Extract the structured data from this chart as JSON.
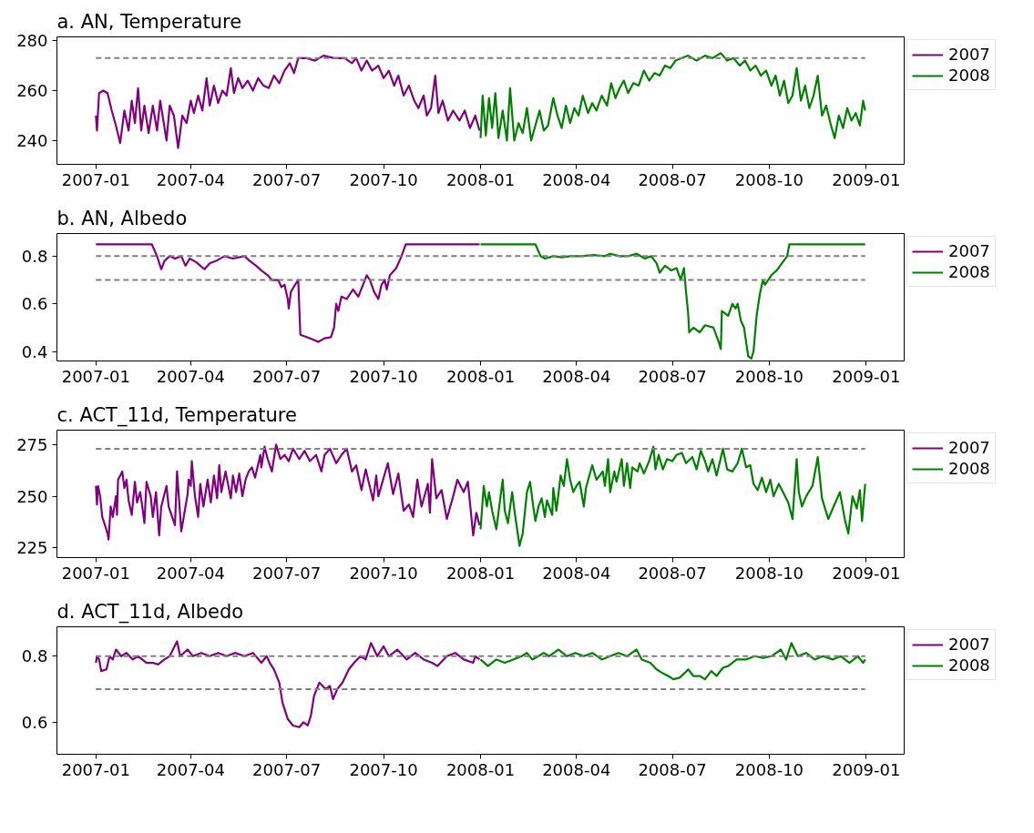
{
  "chart_data": [
    {
      "type": "line",
      "title": "a. AN, Temperature",
      "xlim": [
        "2006-11-25",
        "2009-02-06"
      ],
      "xticks": [
        "2007-01",
        "2007-04",
        "2007-07",
        "2007-10",
        "2008-01",
        "2008-04",
        "2008-07",
        "2008-10",
        "2009-01"
      ],
      "ylim": [
        230.5,
        281.5
      ],
      "yticks": [
        240,
        260,
        280
      ],
      "grid": false,
      "legend": "top right",
      "ref_lines": [
        {
          "axis": "y",
          "value": 273,
          "color": "#808080",
          "line_style": "dashed"
        }
      ],
      "series": [
        {
          "name": "2007",
          "color": "#800080",
          "x": [
            "2007-01-01",
            "2007-01-02",
            "2007-01-04",
            "2007-01-08",
            "2007-01-12",
            "2007-01-16",
            "2007-01-20",
            "2007-01-24",
            "2007-01-28",
            "2007-02-01",
            "2007-02-04",
            "2007-02-07",
            "2007-02-10",
            "2007-02-13",
            "2007-02-16",
            "2007-02-20",
            "2007-02-24",
            "2007-02-28",
            "2007-03-03",
            "2007-03-06",
            "2007-03-09",
            "2007-03-12",
            "2007-03-16",
            "2007-03-20",
            "2007-03-24",
            "2007-03-28",
            "2007-04-01",
            "2007-04-04",
            "2007-04-08",
            "2007-04-12",
            "2007-04-16",
            "2007-04-19",
            "2007-04-23",
            "2007-04-27",
            "2007-05-01",
            "2007-05-05",
            "2007-05-09",
            "2007-05-12",
            "2007-05-16",
            "2007-05-20",
            "2007-05-25",
            "2007-05-30",
            "2007-06-04",
            "2007-06-09",
            "2007-06-14",
            "2007-06-19",
            "2007-06-24",
            "2007-06-29",
            "2007-07-04",
            "2007-07-08",
            "2007-07-12",
            "2007-07-20",
            "2007-07-28",
            "2007-08-05",
            "2007-08-15",
            "2007-08-25",
            "2007-09-01",
            "2007-09-05",
            "2007-09-10",
            "2007-09-15",
            "2007-09-20",
            "2007-09-26",
            "2007-10-01",
            "2007-10-06",
            "2007-10-11",
            "2007-10-15",
            "2007-10-20",
            "2007-10-25",
            "2007-10-30",
            "2007-11-03",
            "2007-11-08",
            "2007-11-11",
            "2007-11-15",
            "2007-11-19",
            "2007-11-22",
            "2007-11-26",
            "2007-12-01",
            "2007-12-06",
            "2007-12-12",
            "2007-12-17",
            "2007-12-22",
            "2007-12-27",
            "2007-12-31"
          ],
          "values": [
            250,
            244,
            259,
            260,
            259,
            252,
            246,
            239,
            252,
            244,
            256,
            247,
            261,
            244,
            254,
            243,
            254,
            244,
            256,
            248,
            240,
            254,
            250,
            237,
            250,
            247,
            256,
            251,
            258,
            252,
            265,
            254,
            262,
            255,
            260,
            258,
            269,
            259,
            265,
            261,
            264,
            260,
            265,
            262,
            261,
            266,
            263,
            268,
            271,
            267,
            273,
            273,
            272,
            274,
            273,
            273,
            271,
            273,
            268,
            272,
            268,
            270,
            265,
            268,
            262,
            266,
            258,
            262,
            256,
            253,
            258,
            250,
            253,
            266,
            251,
            256,
            248,
            252,
            248,
            252,
            245,
            250,
            244
          ]
        },
        {
          "name": "2008",
          "color": "#008000",
          "x": [
            "2008-01-01",
            "2008-01-03",
            "2008-01-06",
            "2008-01-09",
            "2008-01-12",
            "2008-01-15",
            "2008-01-18",
            "2008-01-22",
            "2008-01-26",
            "2008-01-29",
            "2008-02-02",
            "2008-02-06",
            "2008-02-10",
            "2008-02-14",
            "2008-02-18",
            "2008-02-22",
            "2008-02-26",
            "2008-03-01",
            "2008-03-05",
            "2008-03-10",
            "2008-03-14",
            "2008-03-18",
            "2008-03-22",
            "2008-03-26",
            "2008-03-30",
            "2008-04-03",
            "2008-04-07",
            "2008-04-12",
            "2008-04-16",
            "2008-04-20",
            "2008-04-25",
            "2008-04-30",
            "2008-05-04",
            "2008-05-08",
            "2008-05-12",
            "2008-05-16",
            "2008-05-20",
            "2008-05-25",
            "2008-05-30",
            "2008-06-04",
            "2008-06-09",
            "2008-06-14",
            "2008-06-19",
            "2008-06-24",
            "2008-06-29",
            "2008-07-04",
            "2008-07-10",
            "2008-07-16",
            "2008-07-24",
            "2008-08-01",
            "2008-08-08",
            "2008-08-16",
            "2008-08-22",
            "2008-08-28",
            "2008-09-03",
            "2008-09-08",
            "2008-09-13",
            "2008-09-18",
            "2008-09-23",
            "2008-09-28",
            "2008-10-03",
            "2008-10-07",
            "2008-10-11",
            "2008-10-15",
            "2008-10-19",
            "2008-10-23",
            "2008-10-27",
            "2008-10-31",
            "2008-11-04",
            "2008-11-08",
            "2008-11-12",
            "2008-11-16",
            "2008-11-20",
            "2008-11-24",
            "2008-11-28",
            "2008-12-02",
            "2008-12-06",
            "2008-12-10",
            "2008-12-14",
            "2008-12-18",
            "2008-12-22",
            "2008-12-26",
            "2008-12-29",
            "2008-12-31"
          ],
          "values": [
            241,
            258,
            242,
            257,
            245,
            259,
            241,
            252,
            240,
            261,
            240,
            247,
            243,
            253,
            240,
            246,
            252,
            244,
            246,
            257,
            250,
            245,
            254,
            247,
            253,
            250,
            258,
            251,
            255,
            252,
            258,
            254,
            263,
            257,
            261,
            264,
            259,
            263,
            262,
            268,
            264,
            267,
            266,
            270,
            269,
            272,
            273,
            274,
            272,
            274,
            273,
            275,
            272,
            273,
            270,
            272,
            268,
            270,
            266,
            268,
            262,
            266,
            258,
            264,
            255,
            258,
            269,
            256,
            262,
            253,
            258,
            266,
            250,
            254,
            247,
            241,
            250,
            245,
            253,
            248,
            251,
            246,
            256,
            252
          ]
        }
      ]
    },
    {
      "type": "line",
      "title": "b. AN, Albedo",
      "xlim": [
        "2006-11-25",
        "2009-02-06"
      ],
      "xticks": [
        "2007-01",
        "2007-04",
        "2007-07",
        "2007-10",
        "2008-01",
        "2008-04",
        "2008-07",
        "2008-10",
        "2009-01"
      ],
      "ylim": [
        0.36,
        0.895
      ],
      "yticks": [
        0.4,
        0.6,
        0.8
      ],
      "grid": false,
      "legend": "top right",
      "ref_lines": [
        {
          "axis": "y",
          "value": 0.8,
          "color": "#808080",
          "line_style": "dashed"
        },
        {
          "axis": "y",
          "value": 0.7,
          "color": "#808080",
          "line_style": "dashed"
        }
      ],
      "series": [
        {
          "name": "2007",
          "color": "#800080",
          "x": [
            "2007-01-01",
            "2007-02-23",
            "2007-02-28",
            "2007-03-04",
            "2007-03-07",
            "2007-03-12",
            "2007-03-17",
            "2007-03-23",
            "2007-03-27",
            "2007-03-31",
            "2007-04-06",
            "2007-04-14",
            "2007-04-19",
            "2007-04-25",
            "2007-05-03",
            "2007-05-11",
            "2007-05-22",
            "2007-05-27",
            "2007-06-02",
            "2007-06-07",
            "2007-06-13",
            "2007-06-17",
            "2007-06-23",
            "2007-06-26",
            "2007-06-29",
            "2007-07-02",
            "2007-07-03",
            "2007-07-05",
            "2007-07-09",
            "2007-07-12",
            "2007-07-14",
            "2007-07-20",
            "2007-07-26",
            "2007-07-31",
            "2007-08-06",
            "2007-08-12",
            "2007-08-15",
            "2007-08-17",
            "2007-08-19",
            "2007-08-22",
            "2007-08-27",
            "2007-09-02",
            "2007-09-07",
            "2007-09-15",
            "2007-09-18",
            "2007-09-22",
            "2007-09-26",
            "2007-09-29",
            "2007-10-02",
            "2007-10-04",
            "2007-10-07",
            "2007-10-13",
            "2007-10-18",
            "2007-10-22",
            "2007-12-31"
          ],
          "values": [
            0.85,
            0.85,
            0.8,
            0.745,
            0.78,
            0.8,
            0.79,
            0.8,
            0.76,
            0.79,
            0.775,
            0.745,
            0.77,
            0.78,
            0.8,
            0.79,
            0.8,
            0.78,
            0.76,
            0.74,
            0.72,
            0.7,
            0.7,
            0.67,
            0.68,
            0.62,
            0.58,
            0.65,
            0.68,
            0.7,
            0.47,
            0.46,
            0.45,
            0.44,
            0.455,
            0.46,
            0.5,
            0.6,
            0.57,
            0.63,
            0.62,
            0.66,
            0.63,
            0.72,
            0.7,
            0.65,
            0.62,
            0.68,
            0.7,
            0.66,
            0.72,
            0.75,
            0.8,
            0.85,
            0.85
          ]
        },
        {
          "name": "2008",
          "color": "#008000",
          "x": [
            "2008-01-01",
            "2008-02-22",
            "2008-02-27",
            "2008-03-02",
            "2008-03-10",
            "2008-03-18",
            "2008-03-26",
            "2008-04-06",
            "2008-04-17",
            "2008-04-28",
            "2008-05-03",
            "2008-05-12",
            "2008-05-20",
            "2008-05-28",
            "2008-06-05",
            "2008-06-11",
            "2008-06-16",
            "2008-06-19",
            "2008-06-24",
            "2008-06-30",
            "2008-07-05",
            "2008-07-09",
            "2008-07-12",
            "2008-07-14",
            "2008-07-16",
            "2008-07-17",
            "2008-07-21",
            "2008-07-27",
            "2008-08-01",
            "2008-08-09",
            "2008-08-14",
            "2008-08-16",
            "2008-08-17",
            "2008-08-23",
            "2008-08-27",
            "2008-08-30",
            "2008-09-01",
            "2008-09-04",
            "2008-09-07",
            "2008-09-09",
            "2008-09-11",
            "2008-09-14",
            "2008-09-16",
            "2008-09-19",
            "2008-09-22",
            "2008-09-25",
            "2008-09-27",
            "2008-10-03",
            "2008-10-08",
            "2008-10-13",
            "2008-10-18",
            "2008-10-20",
            "2008-12-31"
          ],
          "values": [
            0.85,
            0.85,
            0.8,
            0.79,
            0.8,
            0.795,
            0.8,
            0.8,
            0.805,
            0.8,
            0.81,
            0.8,
            0.8,
            0.81,
            0.79,
            0.8,
            0.77,
            0.73,
            0.76,
            0.74,
            0.75,
            0.7,
            0.75,
            0.65,
            0.56,
            0.48,
            0.5,
            0.48,
            0.51,
            0.5,
            0.44,
            0.41,
            0.57,
            0.55,
            0.6,
            0.58,
            0.6,
            0.53,
            0.5,
            0.44,
            0.38,
            0.37,
            0.4,
            0.55,
            0.64,
            0.7,
            0.68,
            0.72,
            0.74,
            0.77,
            0.8,
            0.85,
            0.85
          ]
        }
      ]
    },
    {
      "type": "line",
      "title": "c. ACT_11d, Temperature",
      "xlim": [
        "2006-11-25",
        "2009-02-06"
      ],
      "xticks": [
        "2007-01",
        "2007-04",
        "2007-07",
        "2007-10",
        "2008-01",
        "2008-04",
        "2008-07",
        "2008-10",
        "2009-01"
      ],
      "ylim": [
        220.3,
        282
      ],
      "yticks": [
        225,
        250,
        275
      ],
      "grid": false,
      "legend": "top right",
      "ref_lines": [
        {
          "axis": "y",
          "value": 273,
          "color": "#808080",
          "line_style": "dashed"
        }
      ],
      "series": [
        {
          "name": "2007",
          "color": "#800080",
          "x": [
            "2007-01-01",
            "2007-01-02",
            "2007-01-03",
            "2007-01-05",
            "2007-01-07",
            "2007-01-09",
            "2007-01-12",
            "2007-01-13",
            "2007-01-15",
            "2007-01-17",
            "2007-01-20",
            "2007-01-21",
            "2007-01-22",
            "2007-01-26",
            "2007-01-28",
            "2007-01-30",
            "2007-02-01",
            "2007-02-04",
            "2007-02-07",
            "2007-02-09",
            "2007-02-12",
            "2007-02-14",
            "2007-02-16",
            "2007-02-18",
            "2007-02-22",
            "2007-02-24",
            "2007-02-27",
            "2007-03-02",
            "2007-03-04",
            "2007-03-09",
            "2007-03-11",
            "2007-03-17",
            "2007-03-19",
            "2007-03-23",
            "2007-03-26",
            "2007-03-29",
            "2007-03-30",
            "2007-04-01",
            "2007-04-02",
            "2007-04-05",
            "2007-04-08",
            "2007-04-10",
            "2007-04-13",
            "2007-04-17",
            "2007-04-20",
            "2007-04-23",
            "2007-04-26",
            "2007-04-28",
            "2007-04-30",
            "2007-05-04",
            "2007-05-09",
            "2007-05-11",
            "2007-05-14",
            "2007-05-17",
            "2007-05-20",
            "2007-05-23",
            "2007-05-26",
            "2007-05-29",
            "2007-06-01",
            "2007-06-06",
            "2007-06-07",
            "2007-06-10",
            "2007-06-13",
            "2007-06-17",
            "2007-06-21",
            "2007-06-25",
            "2007-06-29",
            "2007-07-03",
            "2007-07-07",
            "2007-07-13",
            "2007-07-18",
            "2007-07-23",
            "2007-07-29",
            "2007-08-03",
            "2007-08-06",
            "2007-08-11",
            "2007-08-17",
            "2007-08-22",
            "2007-08-27",
            "2007-09-01",
            "2007-09-05",
            "2007-09-10",
            "2007-09-14",
            "2007-09-21",
            "2007-09-24",
            "2007-09-26",
            "2007-10-05",
            "2007-10-10",
            "2007-10-15",
            "2007-10-20",
            "2007-10-25",
            "2007-10-29",
            "2007-11-02",
            "2007-11-06",
            "2007-11-12",
            "2007-11-14",
            "2007-11-16",
            "2007-11-20",
            "2007-11-25",
            "2007-11-30",
            "2007-12-06",
            "2007-12-10",
            "2007-12-16",
            "2007-12-20",
            "2007-12-25",
            "2007-12-28",
            "2007-12-31"
          ],
          "values": [
            255,
            246,
            255,
            250,
            240,
            237,
            232,
            229,
            245,
            240,
            250,
            241,
            258,
            262,
            254,
            258,
            248,
            241,
            257,
            247,
            252,
            245,
            237,
            257,
            250,
            240,
            252,
            231,
            245,
            255,
            245,
            236,
            262,
            233,
            242,
            251,
            258,
            255,
            267,
            250,
            240,
            256,
            245,
            258,
            247,
            260,
            249,
            265,
            252,
            262,
            249,
            260,
            252,
            261,
            250,
            258,
            262,
            264,
            259,
            270,
            264,
            274,
            268,
            262,
            275,
            268,
            270,
            267,
            273,
            268,
            272,
            267,
            270,
            262,
            270,
            273,
            266,
            270,
            273,
            262,
            265,
            253,
            263,
            248,
            260,
            250,
            266,
            251,
            261,
            243,
            246,
            240,
            258,
            245,
            256,
            242,
            268,
            249,
            253,
            239,
            250,
            258,
            252,
            257,
            231,
            242,
            236
          ]
        },
        {
          "name": "2008",
          "color": "#008000",
          "x": [
            "2008-01-01",
            "2008-01-04",
            "2008-01-07",
            "2008-01-09",
            "2008-01-12",
            "2008-01-16",
            "2008-01-22",
            "2008-01-24",
            "2008-01-27",
            "2008-01-31",
            "2008-02-03",
            "2008-02-07",
            "2008-02-10",
            "2008-02-14",
            "2008-02-17",
            "2008-02-20",
            "2008-02-22",
            "2008-02-25",
            "2008-02-28",
            "2008-03-02",
            "2008-03-04",
            "2008-03-09",
            "2008-03-10",
            "2008-03-13",
            "2008-03-17",
            "2008-03-20",
            "2008-03-23",
            "2008-03-26",
            "2008-03-29",
            "2008-04-01",
            "2008-04-04",
            "2008-04-08",
            "2008-04-10",
            "2008-04-16",
            "2008-04-20",
            "2008-04-26",
            "2008-04-28",
            "2008-05-01",
            "2008-05-03",
            "2008-05-07",
            "2008-05-09",
            "2008-05-14",
            "2008-05-16",
            "2008-05-19",
            "2008-05-22",
            "2008-05-24",
            "2008-05-29",
            "2008-05-31",
            "2008-06-04",
            "2008-06-09",
            "2008-06-13",
            "2008-06-15",
            "2008-06-18",
            "2008-06-22",
            "2008-06-26",
            "2008-07-01",
            "2008-07-05",
            "2008-07-10",
            "2008-07-14",
            "2008-07-20",
            "2008-07-24",
            "2008-07-28",
            "2008-08-01",
            "2008-08-04",
            "2008-08-08",
            "2008-08-12",
            "2008-08-18",
            "2008-08-22",
            "2008-08-27",
            "2008-09-01",
            "2008-09-05",
            "2008-09-09",
            "2008-09-13",
            "2008-09-16",
            "2008-09-20",
            "2008-09-24",
            "2008-09-28",
            "2008-10-02",
            "2008-10-05",
            "2008-10-10",
            "2008-10-14",
            "2008-10-19",
            "2008-10-23",
            "2008-10-27",
            "2008-10-29",
            "2008-11-01",
            "2008-11-05",
            "2008-11-11",
            "2008-11-16",
            "2008-11-20",
            "2008-11-26",
            "2008-12-01",
            "2008-12-07",
            "2008-12-12",
            "2008-12-15",
            "2008-12-19",
            "2008-12-23",
            "2008-12-26",
            "2008-12-28",
            "2008-12-31"
          ],
          "values": [
            234,
            255,
            245,
            252,
            243,
            234,
            258,
            243,
            237,
            252,
            240,
            226,
            232,
            252,
            257,
            245,
            238,
            245,
            249,
            240,
            248,
            241,
            254,
            243,
            260,
            255,
            268,
            258,
            252,
            255,
            257,
            245,
            254,
            265,
            258,
            262,
            255,
            268,
            252,
            262,
            257,
            268,
            255,
            266,
            254,
            264,
            262,
            266,
            261,
            267,
            274,
            263,
            270,
            263,
            268,
            267,
            270,
            271,
            266,
            269,
            263,
            272,
            267,
            262,
            268,
            260,
            273,
            263,
            262,
            266,
            273,
            264,
            265,
            256,
            253,
            259,
            252,
            258,
            250,
            256,
            252,
            247,
            239,
            268,
            252,
            245,
            250,
            255,
            269,
            249,
            239,
            245,
            252,
            238,
            232,
            250,
            244,
            253,
            238,
            256
          ]
        }
      ]
    },
    {
      "type": "line",
      "title": "d. ACT_11d, Albedo",
      "xlim": [
        "2006-11-25",
        "2009-02-06"
      ],
      "xticks": [
        "2007-01",
        "2007-04",
        "2007-07",
        "2007-10",
        "2008-01",
        "2008-04",
        "2008-07",
        "2008-10",
        "2009-01"
      ],
      "ylim": [
        0.503,
        0.889
      ],
      "yticks": [
        0.6,
        0.8
      ],
      "grid": false,
      "legend": "top right",
      "ref_lines": [
        {
          "axis": "y",
          "value": 0.8,
          "color": "#808080",
          "line_style": "dashed"
        },
        {
          "axis": "y",
          "value": 0.7,
          "color": "#808080",
          "line_style": "dashed"
        }
      ],
      "series": [
        {
          "name": "2007",
          "color": "#800080",
          "x": [
            "2007-01-01",
            "2007-01-02",
            "2007-01-04",
            "2007-01-06",
            "2007-01-11",
            "2007-01-14",
            "2007-01-17",
            "2007-01-20",
            "2007-01-25",
            "2007-01-30",
            "2007-02-05",
            "2007-02-10",
            "2007-02-18",
            "2007-02-24",
            "2007-03-01",
            "2007-03-07",
            "2007-03-12",
            "2007-03-19",
            "2007-03-22",
            "2007-03-29",
            "2007-04-03",
            "2007-04-11",
            "2007-04-19",
            "2007-04-27",
            "2007-05-05",
            "2007-05-13",
            "2007-05-22",
            "2007-05-30",
            "2007-06-07",
            "2007-06-12",
            "2007-06-15",
            "2007-06-19",
            "2007-06-24",
            "2007-06-27",
            "2007-07-02",
            "2007-07-07",
            "2007-07-13",
            "2007-07-17",
            "2007-07-21",
            "2007-07-24",
            "2007-07-27",
            "2007-08-01",
            "2007-08-07",
            "2007-08-11",
            "2007-08-14",
            "2007-08-18",
            "2007-08-23",
            "2007-08-29",
            "2007-09-03",
            "2007-09-09",
            "2007-09-14",
            "2007-09-19",
            "2007-09-25",
            "2007-10-01",
            "2007-10-06",
            "2007-10-14",
            "2007-10-23",
            "2007-10-31",
            "2007-11-08",
            "2007-11-16",
            "2007-11-21",
            "2007-11-30",
            "2007-12-08",
            "2007-12-16",
            "2007-12-25",
            "2007-12-27",
            "2007-12-31"
          ],
          "values": [
            0.78,
            0.8,
            0.79,
            0.755,
            0.76,
            0.8,
            0.79,
            0.82,
            0.8,
            0.81,
            0.79,
            0.8,
            0.78,
            0.78,
            0.775,
            0.79,
            0.8,
            0.845,
            0.8,
            0.82,
            0.8,
            0.81,
            0.8,
            0.81,
            0.8,
            0.81,
            0.8,
            0.81,
            0.78,
            0.8,
            0.78,
            0.76,
            0.72,
            0.66,
            0.61,
            0.59,
            0.585,
            0.6,
            0.59,
            0.62,
            0.68,
            0.72,
            0.7,
            0.71,
            0.67,
            0.7,
            0.72,
            0.76,
            0.78,
            0.8,
            0.79,
            0.84,
            0.8,
            0.83,
            0.8,
            0.82,
            0.79,
            0.81,
            0.79,
            0.78,
            0.77,
            0.8,
            0.81,
            0.79,
            0.78,
            0.8,
            0.79
          ]
        },
        {
          "name": "2008",
          "color": "#008000",
          "x": [
            "2008-01-01",
            "2008-01-08",
            "2008-01-16",
            "2008-01-24",
            "2008-02-01",
            "2008-02-09",
            "2008-02-14",
            "2008-02-19",
            "2008-02-25",
            "2008-03-01",
            "2008-03-06",
            "2008-03-15",
            "2008-03-23",
            "2008-03-31",
            "2008-04-08",
            "2008-04-16",
            "2008-04-25",
            "2008-05-03",
            "2008-05-11",
            "2008-05-19",
            "2008-05-28",
            "2008-06-02",
            "2008-06-10",
            "2008-06-16",
            "2008-06-21",
            "2008-06-27",
            "2008-07-02",
            "2008-07-08",
            "2008-07-13",
            "2008-07-16",
            "2008-07-21",
            "2008-07-27",
            "2008-08-01",
            "2008-08-07",
            "2008-08-12",
            "2008-08-18",
            "2008-08-23",
            "2008-08-31",
            "2008-09-09",
            "2008-09-17",
            "2008-09-25",
            "2008-10-03",
            "2008-10-12",
            "2008-10-17",
            "2008-10-22",
            "2008-10-28",
            "2008-11-05",
            "2008-11-13",
            "2008-11-21",
            "2008-11-30",
            "2008-12-08",
            "2008-12-16",
            "2008-12-24",
            "2008-12-29",
            "2008-12-31"
          ],
          "values": [
            0.79,
            0.77,
            0.79,
            0.78,
            0.79,
            0.8,
            0.81,
            0.79,
            0.8,
            0.81,
            0.8,
            0.82,
            0.8,
            0.81,
            0.8,
            0.81,
            0.79,
            0.8,
            0.81,
            0.8,
            0.82,
            0.79,
            0.78,
            0.76,
            0.75,
            0.74,
            0.73,
            0.735,
            0.75,
            0.76,
            0.74,
            0.74,
            0.73,
            0.755,
            0.74,
            0.765,
            0.77,
            0.79,
            0.79,
            0.8,
            0.795,
            0.8,
            0.82,
            0.79,
            0.84,
            0.8,
            0.81,
            0.79,
            0.8,
            0.79,
            0.8,
            0.78,
            0.8,
            0.78,
            0.79
          ]
        }
      ]
    }
  ]
}
